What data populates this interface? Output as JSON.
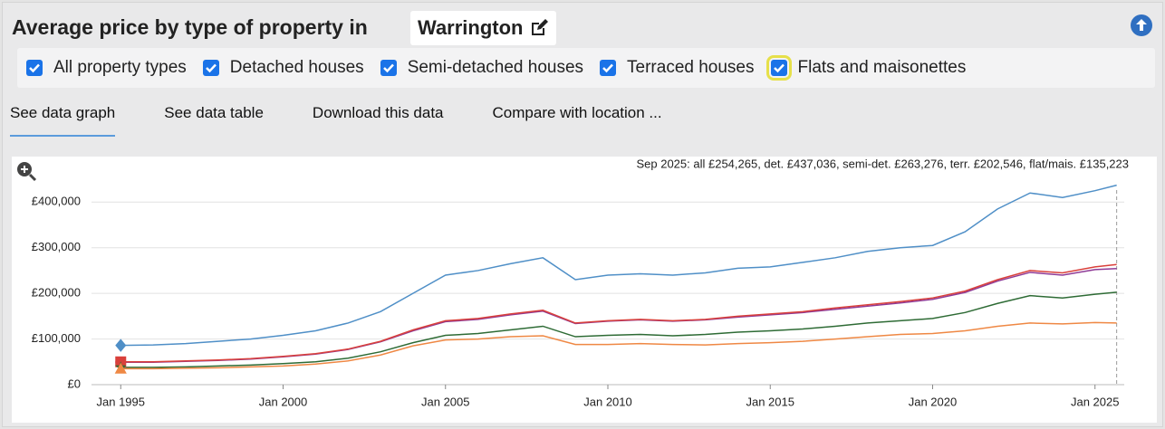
{
  "header": {
    "title": "Average price by type of property in",
    "location": "Warrington"
  },
  "tabs": [
    "See data graph",
    "See data table",
    "Download this data",
    "Compare with location ..."
  ],
  "chart_data": {
    "type": "line",
    "annotation": "Sep 2025: all £254,265, det. £437,036, semi-det. £263,276, terr. £202,546, flat/mais. £135,223",
    "x": [
      1995,
      1996,
      1997,
      1998,
      1999,
      2000,
      2001,
      2002,
      2003,
      2004,
      2005,
      2006,
      2007,
      2008,
      2009,
      2010,
      2011,
      2012,
      2013,
      2014,
      2015,
      2016,
      2017,
      2018,
      2019,
      2020,
      2021,
      2022,
      2023,
      2024,
      2025,
      2025.667
    ],
    "xlim": [
      1994.1,
      2025.9
    ],
    "xticks": [
      {
        "value": 1995,
        "label": "Jan 1995"
      },
      {
        "value": 2000,
        "label": "Jan 2000"
      },
      {
        "value": 2005,
        "label": "Jan 2005"
      },
      {
        "value": 2010,
        "label": "Jan 2010"
      },
      {
        "value": 2015,
        "label": "Jan 2015"
      },
      {
        "value": 2020,
        "label": "Jan 2020"
      },
      {
        "value": 2025,
        "label": "Jan 2025"
      }
    ],
    "ylim": [
      0,
      470000
    ],
    "yticks": [
      {
        "value": 0,
        "label": "£0"
      },
      {
        "value": 100000,
        "label": "£100,000"
      },
      {
        "value": 200000,
        "label": "£200,000"
      },
      {
        "value": 300000,
        "label": "£300,000"
      },
      {
        "value": 400000,
        "label": "£400,000"
      }
    ],
    "grid": true,
    "series": [
      {
        "name": "All property types",
        "color": "#8e3a96",
        "marker": "circle",
        "values": [
          49000,
          49000,
          51000,
          53000,
          56000,
          61000,
          67000,
          77000,
          94000,
          118000,
          138000,
          143000,
          153000,
          161000,
          134000,
          139000,
          142000,
          139000,
          142000,
          148000,
          153000,
          158000,
          165000,
          172000,
          179000,
          187000,
          202000,
          227000,
          246000,
          240000,
          252000,
          254265
        ]
      },
      {
        "name": "Detached houses",
        "color": "#4f8fc7",
        "marker": "diamond",
        "values": [
          86000,
          87000,
          90000,
          95000,
          100000,
          108000,
          118000,
          135000,
          160000,
          200000,
          240000,
          250000,
          265000,
          278000,
          230000,
          240000,
          243000,
          240000,
          245000,
          255000,
          258000,
          268000,
          278000,
          292000,
          300000,
          305000,
          335000,
          385000,
          420000,
          410000,
          425000,
          437036
        ]
      },
      {
        "name": "Semi-detached houses",
        "color": "#d9403b",
        "marker": "square",
        "values": [
          50000,
          50000,
          52000,
          54000,
          57000,
          62000,
          68000,
          78000,
          95000,
          120000,
          140000,
          145000,
          155000,
          163000,
          135000,
          140000,
          143000,
          140000,
          143000,
          150000,
          155000,
          160000,
          168000,
          175000,
          182000,
          190000,
          205000,
          230000,
          250000,
          245000,
          258000,
          263276
        ]
      },
      {
        "name": "Terraced houses",
        "color": "#2e6b35",
        "marker": "star",
        "values": [
          38000,
          38000,
          39000,
          41000,
          43000,
          46000,
          50000,
          58000,
          72000,
          92000,
          108000,
          112000,
          120000,
          128000,
          105000,
          108000,
          110000,
          107000,
          110000,
          115000,
          118000,
          122000,
          128000,
          135000,
          140000,
          145000,
          158000,
          178000,
          195000,
          190000,
          198000,
          202546
        ]
      },
      {
        "name": "Flats and maisonettes",
        "color": "#ef8844",
        "marker": "triangle",
        "values": [
          35000,
          35000,
          36000,
          37000,
          39000,
          41000,
          45000,
          52000,
          65000,
          85000,
          98000,
          100000,
          105000,
          107000,
          88000,
          88000,
          90000,
          88000,
          87000,
          90000,
          92000,
          95000,
          100000,
          105000,
          110000,
          112000,
          118000,
          128000,
          135000,
          133000,
          136000,
          135223
        ]
      }
    ]
  }
}
